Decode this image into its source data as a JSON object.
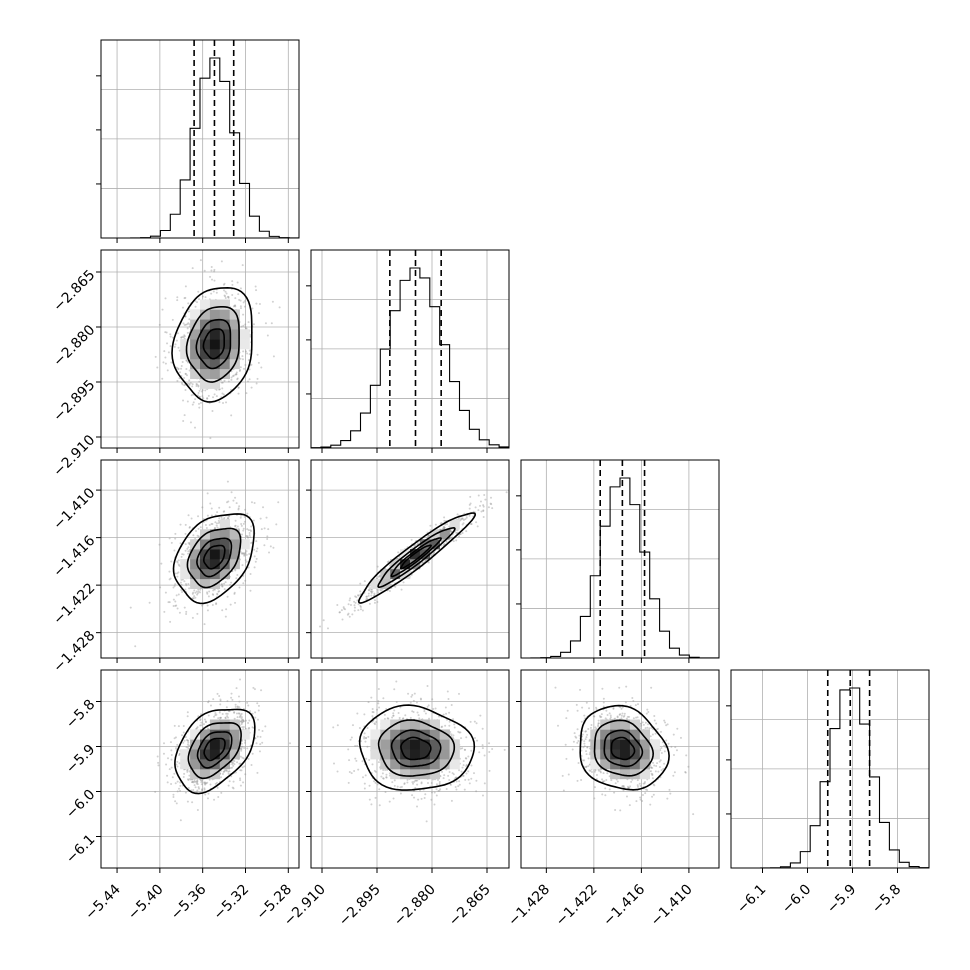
{
  "chart_data": {
    "type": "corner",
    "parameters": [
      {
        "mean": -5.349,
        "sd": 0.018,
        "range": [
          -5.455,
          -5.27
        ],
        "q16": -5.368,
        "q50": -5.349,
        "q84": -5.331,
        "ticks": [
          -5.44,
          -5.4,
          -5.36,
          -5.32,
          -5.28
        ],
        "tick_labels": [
          "−5.44",
          "−5.40",
          "−5.36",
          "−5.32",
          "−5.28"
        ]
      },
      {
        "mean": -2.8845,
        "sd": 0.0075,
        "range": [
          -2.913,
          -2.859
        ],
        "q16": -2.8915,
        "q50": -2.8845,
        "q84": -2.8775,
        "ticks": [
          -2.91,
          -2.895,
          -2.88,
          -2.865
        ],
        "tick_labels": [
          "−2.910",
          "−2.895",
          "−2.880",
          "−2.865"
        ]
      },
      {
        "mean": -1.4184,
        "sd": 0.0027,
        "range": [
          -1.4312,
          -1.4062
        ],
        "q16": -1.4212,
        "q50": -1.4184,
        "q84": -1.4156,
        "ticks": [
          -1.428,
          -1.422,
          -1.416,
          -1.41
        ],
        "tick_labels": [
          "−1.428",
          "−1.422",
          "−1.416",
          "−1.410"
        ]
      },
      {
        "mean": -5.905,
        "sd": 0.045,
        "range": [
          -6.17,
          -5.73
        ],
        "q16": -5.955,
        "q50": -5.905,
        "q84": -5.862,
        "ticks": [
          -6.1,
          -6.0,
          -5.9,
          -5.8
        ],
        "tick_labels": [
          "−6.1",
          "−6.0",
          "−5.9",
          "−5.8"
        ]
      }
    ],
    "correlations": [
      {
        "pair": [
          0,
          1
        ],
        "rho": 0.15
      },
      {
        "pair": [
          0,
          2
        ],
        "rho": 0.35
      },
      {
        "pair": [
          1,
          2
        ],
        "rho": 0.95
      },
      {
        "pair": [
          0,
          3
        ],
        "rho": 0.4
      },
      {
        "pair": [
          1,
          3
        ],
        "rho": -0.05
      },
      {
        "pair": [
          2,
          3
        ],
        "rho": -0.15
      }
    ],
    "histogram_bins": 20,
    "contour_levels_sigma": [
      0.5,
      1.0,
      1.5,
      2.0
    ],
    "quantiles": [
      0.16,
      0.5,
      0.84
    ],
    "grid": true
  }
}
